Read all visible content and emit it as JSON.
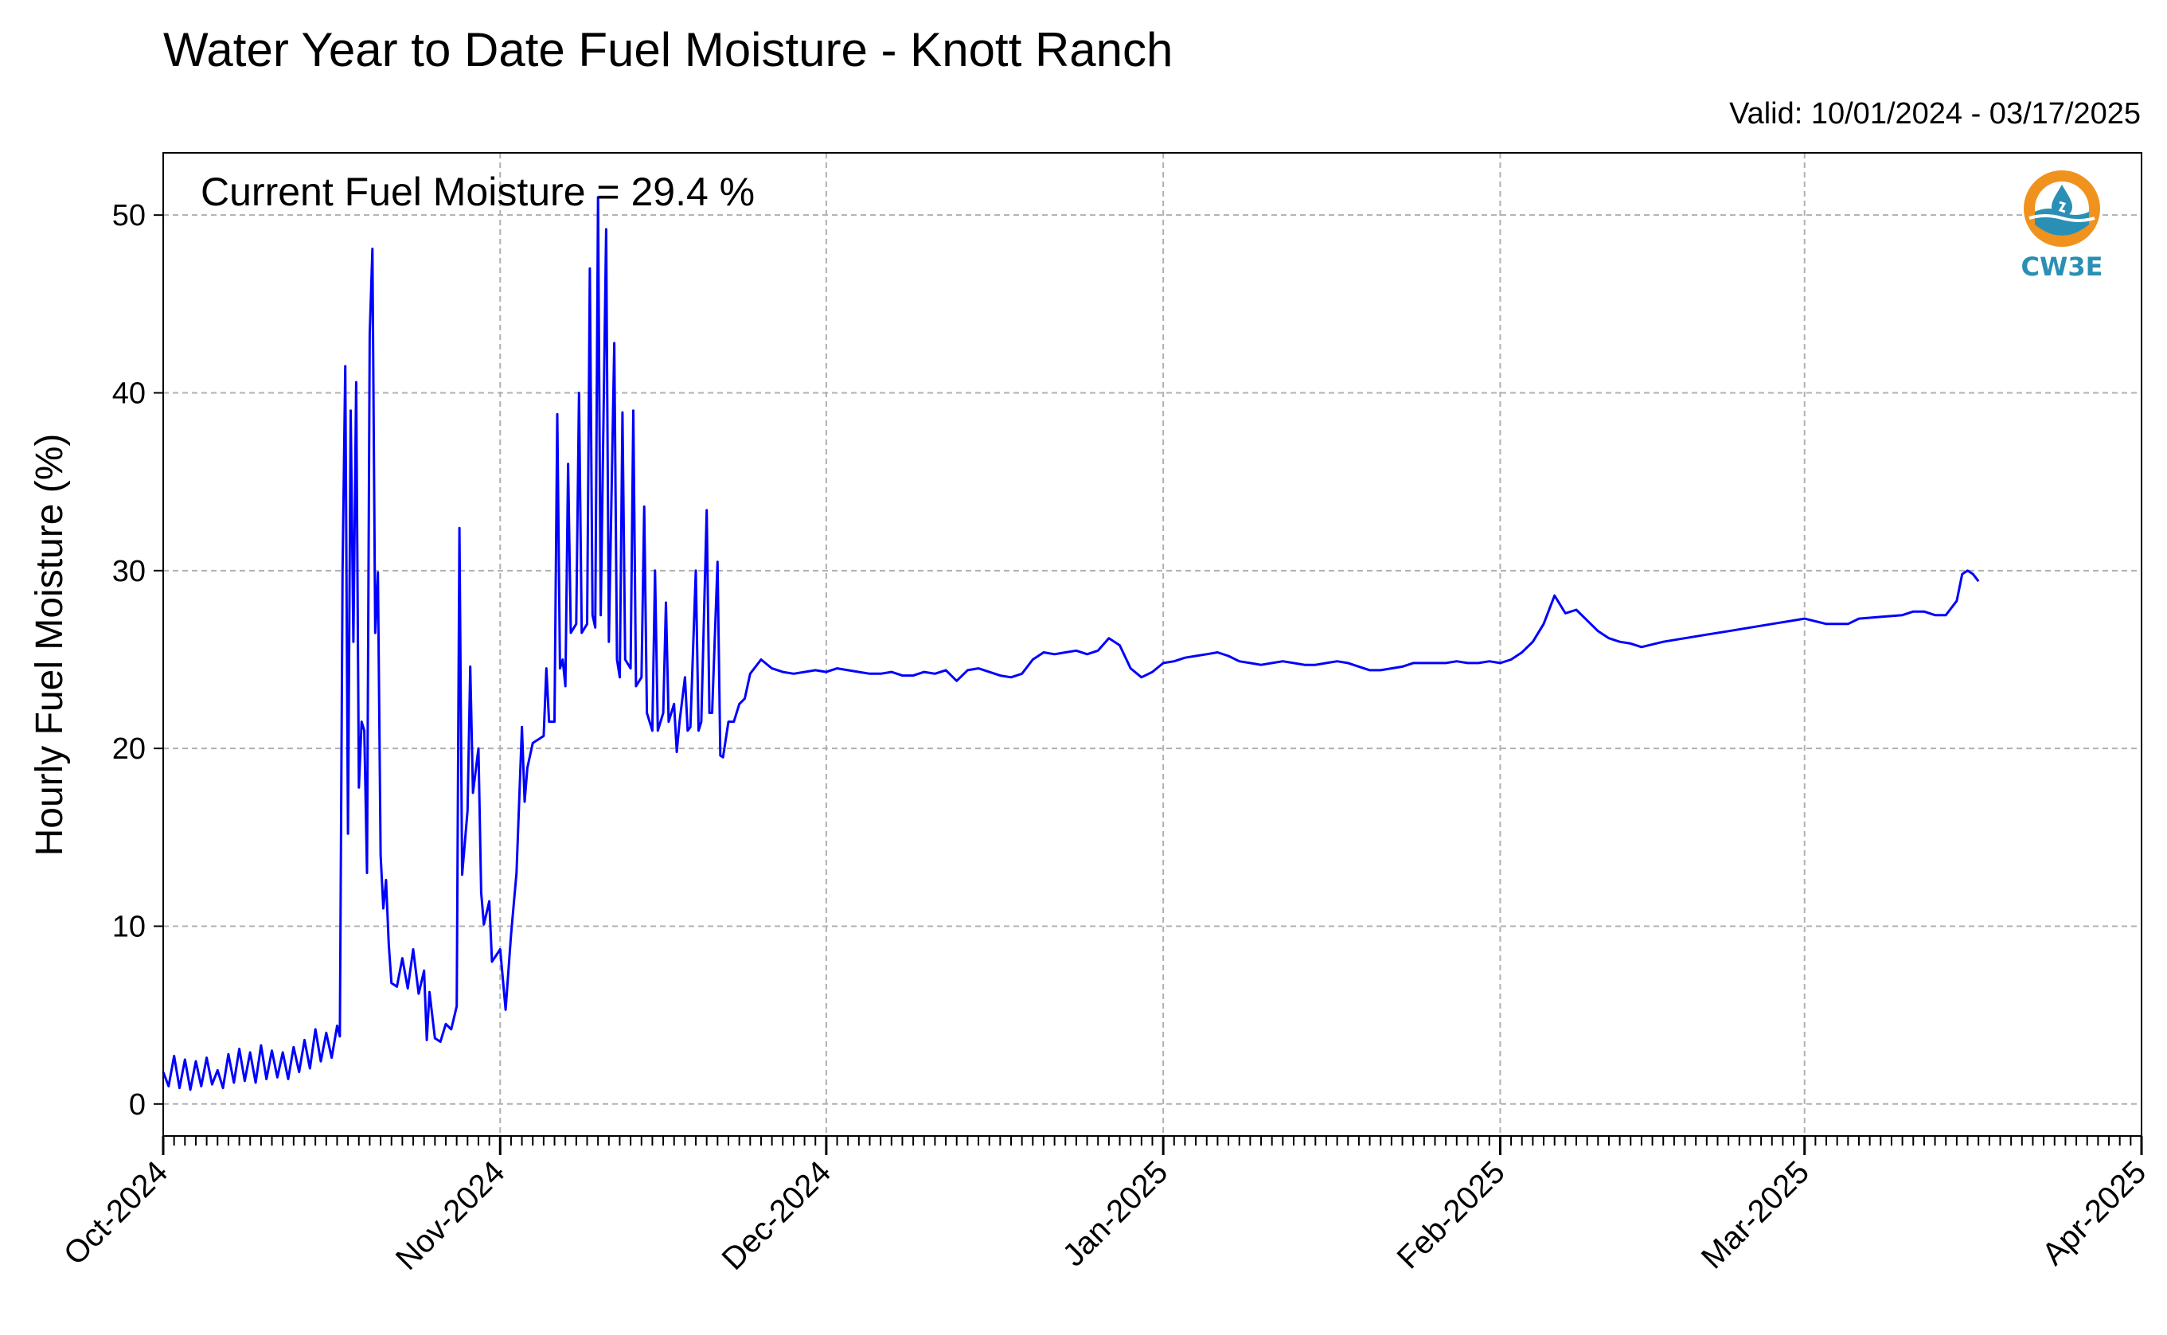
{
  "title": "Water Year to Date Fuel Moisture - Knott Ranch",
  "valid_text": "Valid: 10/01/2024 - 03/17/2025",
  "annotation": "Current Fuel Moisture = 29.4 %",
  "logo": {
    "text": "CW3E",
    "icon": "water-drop-logo-icon",
    "colors": {
      "ring": "#f0921e",
      "wave": "#2a8fb4"
    }
  },
  "chart_data": {
    "type": "line",
    "title": "Water Year to Date Fuel Moisture - Knott Ranch",
    "xlabel": "",
    "ylabel": "Hourly Fuel Moisture (%)",
    "xlim": [
      "2024-10-01",
      "2025-04-01"
    ],
    "ylim": [
      -1.8,
      53.5
    ],
    "yticks": [
      0,
      10,
      20,
      30,
      40,
      50
    ],
    "xticks": [
      {
        "date": "2024-10-01",
        "label": "Oct-2024"
      },
      {
        "date": "2024-11-01",
        "label": "Nov-2024"
      },
      {
        "date": "2024-12-01",
        "label": "Dec-2024"
      },
      {
        "date": "2025-01-01",
        "label": "Jan-2025"
      },
      {
        "date": "2025-02-01",
        "label": "Feb-2025"
      },
      {
        "date": "2025-03-01",
        "label": "Mar-2025"
      },
      {
        "date": "2025-04-01",
        "label": "Apr-2025"
      }
    ],
    "grid": true,
    "line_color": "#0000ff",
    "series": [
      {
        "points": [
          [
            "2024-10-01",
            1.8
          ],
          [
            "2024-10-01T12",
            1.0
          ],
          [
            "2024-10-02",
            2.7
          ],
          [
            "2024-10-02T12",
            0.9
          ],
          [
            "2024-10-03",
            2.5
          ],
          [
            "2024-10-03T12",
            0.8
          ],
          [
            "2024-10-04",
            2.4
          ],
          [
            "2024-10-04T12",
            1.0
          ],
          [
            "2024-10-05",
            2.6
          ],
          [
            "2024-10-05T12",
            1.1
          ],
          [
            "2024-10-06",
            1.9
          ],
          [
            "2024-10-06T12",
            0.9
          ],
          [
            "2024-10-07",
            2.8
          ],
          [
            "2024-10-07T12",
            1.2
          ],
          [
            "2024-10-08",
            3.1
          ],
          [
            "2024-10-08T12",
            1.3
          ],
          [
            "2024-10-09",
            2.9
          ],
          [
            "2024-10-09T12",
            1.2
          ],
          [
            "2024-10-10",
            3.3
          ],
          [
            "2024-10-10T12",
            1.4
          ],
          [
            "2024-10-11",
            3.0
          ],
          [
            "2024-10-11T12",
            1.5
          ],
          [
            "2024-10-12",
            2.9
          ],
          [
            "2024-10-12T12",
            1.4
          ],
          [
            "2024-10-13",
            3.2
          ],
          [
            "2024-10-13T12",
            1.8
          ],
          [
            "2024-10-14",
            3.6
          ],
          [
            "2024-10-14T12",
            2.0
          ],
          [
            "2024-10-15",
            4.2
          ],
          [
            "2024-10-15T12",
            2.4
          ],
          [
            "2024-10-16",
            4.0
          ],
          [
            "2024-10-16T12",
            2.6
          ],
          [
            "2024-10-17",
            4.4
          ],
          [
            "2024-10-17T06",
            3.8
          ],
          [
            "2024-10-17T12",
            30.0
          ],
          [
            "2024-10-17T18",
            41.5
          ],
          [
            "2024-10-18",
            15.2
          ],
          [
            "2024-10-18T06",
            39.0
          ],
          [
            "2024-10-18T12",
            26.0
          ],
          [
            "2024-10-18T18",
            40.6
          ],
          [
            "2024-10-19",
            17.8
          ],
          [
            "2024-10-19T06",
            21.5
          ],
          [
            "2024-10-19T12",
            21.0
          ],
          [
            "2024-10-19T18",
            13.0
          ],
          [
            "2024-10-20",
            43.3
          ],
          [
            "2024-10-20T06",
            48.1
          ],
          [
            "2024-10-20T12",
            26.5
          ],
          [
            "2024-10-20T18",
            29.9
          ],
          [
            "2024-10-21",
            14.0
          ],
          [
            "2024-10-21T06",
            11.0
          ],
          [
            "2024-10-21T12",
            12.6
          ],
          [
            "2024-10-21T18",
            9.0
          ],
          [
            "2024-10-22",
            6.8
          ],
          [
            "2024-10-22T12",
            6.6
          ],
          [
            "2024-10-23",
            8.2
          ],
          [
            "2024-10-23T12",
            6.5
          ],
          [
            "2024-10-24",
            8.7
          ],
          [
            "2024-10-24T12",
            6.2
          ],
          [
            "2024-10-25",
            7.5
          ],
          [
            "2024-10-25T06",
            3.6
          ],
          [
            "2024-10-25T12",
            6.3
          ],
          [
            "2024-10-26",
            3.7
          ],
          [
            "2024-10-26T12",
            3.5
          ],
          [
            "2024-10-27",
            4.5
          ],
          [
            "2024-10-27T12",
            4.2
          ],
          [
            "2024-10-28",
            5.5
          ],
          [
            "2024-10-28T06",
            32.4
          ],
          [
            "2024-10-28T12",
            12.9
          ],
          [
            "2024-10-29",
            16.5
          ],
          [
            "2024-10-29T06",
            24.6
          ],
          [
            "2024-10-29T12",
            17.5
          ],
          [
            "2024-10-30",
            20.0
          ],
          [
            "2024-10-30T06",
            11.9
          ],
          [
            "2024-10-30T12",
            10.1
          ],
          [
            "2024-10-31",
            11.4
          ],
          [
            "2024-10-31T06",
            8.0
          ],
          [
            "2024-11-01",
            8.7
          ],
          [
            "2024-11-01T12",
            5.3
          ],
          [
            "2024-11-02",
            9.5
          ],
          [
            "2024-11-02T12",
            13.0
          ],
          [
            "2024-11-03",
            21.2
          ],
          [
            "2024-11-03T06",
            17.0
          ],
          [
            "2024-11-03T12",
            18.9
          ],
          [
            "2024-11-04",
            20.3
          ],
          [
            "2024-11-05",
            20.7
          ],
          [
            "2024-11-05T06",
            24.5
          ],
          [
            "2024-11-05T12",
            21.5
          ],
          [
            "2024-11-06",
            21.5
          ],
          [
            "2024-11-06T06",
            38.8
          ],
          [
            "2024-11-06T12",
            24.5
          ],
          [
            "2024-11-06T18",
            25.0
          ],
          [
            "2024-11-07",
            23.5
          ],
          [
            "2024-11-07T06",
            36.0
          ],
          [
            "2024-11-07T12",
            26.5
          ],
          [
            "2024-11-08",
            27.0
          ],
          [
            "2024-11-08T06",
            40.0
          ],
          [
            "2024-11-08T12",
            26.5
          ],
          [
            "2024-11-09",
            27.0
          ],
          [
            "2024-11-09T06",
            47.0
          ],
          [
            "2024-11-09T12",
            27.5
          ],
          [
            "2024-11-09T18",
            26.8
          ],
          [
            "2024-11-10",
            51.0
          ],
          [
            "2024-11-10T06",
            27.5
          ],
          [
            "2024-11-10T18",
            49.2
          ],
          [
            "2024-11-11",
            26.0
          ],
          [
            "2024-11-11T12",
            42.8
          ],
          [
            "2024-11-11T18",
            25.0
          ],
          [
            "2024-11-12",
            24.0
          ],
          [
            "2024-11-12T06",
            38.9
          ],
          [
            "2024-11-12T12",
            25.0
          ],
          [
            "2024-11-13",
            24.5
          ],
          [
            "2024-11-13T06",
            39.0
          ],
          [
            "2024-11-13T12",
            23.5
          ],
          [
            "2024-11-14",
            24.0
          ],
          [
            "2024-11-14T06",
            33.6
          ],
          [
            "2024-11-14T12",
            22.0
          ],
          [
            "2024-11-15",
            21.0
          ],
          [
            "2024-11-15T06",
            30.0
          ],
          [
            "2024-11-15T12",
            21.0
          ],
          [
            "2024-11-16",
            22.0
          ],
          [
            "2024-11-16T06",
            28.2
          ],
          [
            "2024-11-16T12",
            21.5
          ],
          [
            "2024-11-17",
            22.5
          ],
          [
            "2024-11-17T06",
            19.8
          ],
          [
            "2024-11-17T12",
            21.5
          ],
          [
            "2024-11-18",
            24.0
          ],
          [
            "2024-11-18T06",
            21.0
          ],
          [
            "2024-11-18T12",
            21.2
          ],
          [
            "2024-11-19",
            30.0
          ],
          [
            "2024-11-19T06",
            21.0
          ],
          [
            "2024-11-19T12",
            21.5
          ],
          [
            "2024-11-20",
            33.4
          ],
          [
            "2024-11-20T06",
            22.0
          ],
          [
            "2024-11-20T12",
            22.0
          ],
          [
            "2024-11-21",
            30.5
          ],
          [
            "2024-11-21T06",
            19.6
          ],
          [
            "2024-11-21T12",
            19.5
          ],
          [
            "2024-11-22",
            21.5
          ],
          [
            "2024-11-22T12",
            21.5
          ],
          [
            "2024-11-23",
            22.5
          ],
          [
            "2024-11-23T12",
            22.8
          ],
          [
            "2024-11-24",
            24.2
          ],
          [
            "2024-11-25",
            25.0
          ],
          [
            "2024-11-26",
            24.5
          ],
          [
            "2024-11-27",
            24.3
          ],
          [
            "2024-11-28",
            24.2
          ],
          [
            "2024-11-29",
            24.3
          ],
          [
            "2024-11-30",
            24.4
          ],
          [
            "2024-12-01",
            24.3
          ],
          [
            "2024-12-02",
            24.5
          ],
          [
            "2024-12-03",
            24.4
          ],
          [
            "2024-12-04",
            24.3
          ],
          [
            "2024-12-05",
            24.2
          ],
          [
            "2024-12-06",
            24.2
          ],
          [
            "2024-12-07",
            24.3
          ],
          [
            "2024-12-08",
            24.1
          ],
          [
            "2024-12-09",
            24.1
          ],
          [
            "2024-12-10",
            24.3
          ],
          [
            "2024-12-11",
            24.2
          ],
          [
            "2024-12-12",
            24.4
          ],
          [
            "2024-12-13",
            23.8
          ],
          [
            "2024-12-14",
            24.4
          ],
          [
            "2024-12-15",
            24.5
          ],
          [
            "2024-12-16",
            24.3
          ],
          [
            "2024-12-17",
            24.1
          ],
          [
            "2024-12-18",
            24.0
          ],
          [
            "2024-12-19",
            24.2
          ],
          [
            "2024-12-20",
            25.0
          ],
          [
            "2024-12-21",
            25.4
          ],
          [
            "2024-12-22",
            25.3
          ],
          [
            "2024-12-23",
            25.4
          ],
          [
            "2024-12-24",
            25.5
          ],
          [
            "2024-12-25",
            25.3
          ],
          [
            "2024-12-26",
            25.5
          ],
          [
            "2024-12-27",
            26.2
          ],
          [
            "2024-12-28",
            25.8
          ],
          [
            "2024-12-29",
            24.5
          ],
          [
            "2024-12-30",
            24.0
          ],
          [
            "2024-12-31",
            24.3
          ],
          [
            "2025-01-01",
            24.8
          ],
          [
            "2025-01-02",
            24.9
          ],
          [
            "2025-01-03",
            25.1
          ],
          [
            "2025-01-04",
            25.2
          ],
          [
            "2025-01-05",
            25.3
          ],
          [
            "2025-01-06",
            25.4
          ],
          [
            "2025-01-07",
            25.2
          ],
          [
            "2025-01-08",
            24.9
          ],
          [
            "2025-01-09",
            24.8
          ],
          [
            "2025-01-10",
            24.7
          ],
          [
            "2025-01-11",
            24.8
          ],
          [
            "2025-01-12",
            24.9
          ],
          [
            "2025-01-13",
            24.8
          ],
          [
            "2025-01-14",
            24.7
          ],
          [
            "2025-01-15",
            24.7
          ],
          [
            "2025-01-16",
            24.8
          ],
          [
            "2025-01-17",
            24.9
          ],
          [
            "2025-01-18",
            24.8
          ],
          [
            "2025-01-19",
            24.6
          ],
          [
            "2025-01-20",
            24.4
          ],
          [
            "2025-01-21",
            24.4
          ],
          [
            "2025-01-22",
            24.5
          ],
          [
            "2025-01-23",
            24.6
          ],
          [
            "2025-01-24",
            24.8
          ],
          [
            "2025-01-25",
            24.8
          ],
          [
            "2025-01-26",
            24.8
          ],
          [
            "2025-01-27",
            24.8
          ],
          [
            "2025-01-28",
            24.9
          ],
          [
            "2025-01-29",
            24.8
          ],
          [
            "2025-01-30",
            24.8
          ],
          [
            "2025-01-31",
            24.9
          ],
          [
            "2025-02-01",
            24.8
          ],
          [
            "2025-02-02",
            25.0
          ],
          [
            "2025-02-03",
            25.4
          ],
          [
            "2025-02-04",
            26.0
          ],
          [
            "2025-02-05",
            27.0
          ],
          [
            "2025-02-06",
            28.6
          ],
          [
            "2025-02-07",
            27.6
          ],
          [
            "2025-02-08",
            27.8
          ],
          [
            "2025-02-09",
            27.2
          ],
          [
            "2025-02-10",
            26.6
          ],
          [
            "2025-02-11",
            26.2
          ],
          [
            "2025-02-12",
            26.0
          ],
          [
            "2025-02-13",
            25.9
          ],
          [
            "2025-02-14",
            25.7
          ],
          [
            "2025-02-16",
            26.0
          ],
          [
            "2025-02-18",
            26.2
          ],
          [
            "2025-02-20",
            26.4
          ],
          [
            "2025-02-22",
            26.6
          ],
          [
            "2025-02-24",
            26.8
          ],
          [
            "2025-02-26",
            27.0
          ],
          [
            "2025-02-28",
            27.2
          ],
          [
            "2025-03-01",
            27.3
          ],
          [
            "2025-03-03",
            27.0
          ],
          [
            "2025-03-05",
            27.0
          ],
          [
            "2025-03-06",
            27.3
          ],
          [
            "2025-03-08",
            27.4
          ],
          [
            "2025-03-10",
            27.5
          ],
          [
            "2025-03-11",
            27.7
          ],
          [
            "2025-03-12",
            27.7
          ],
          [
            "2025-03-13",
            27.5
          ],
          [
            "2025-03-14",
            27.5
          ],
          [
            "2025-03-15",
            28.3
          ],
          [
            "2025-03-15T12",
            29.8
          ],
          [
            "2025-03-16",
            30.0
          ],
          [
            "2025-03-16T12",
            29.8
          ],
          [
            "2025-03-17",
            29.4
          ]
        ]
      }
    ]
  }
}
